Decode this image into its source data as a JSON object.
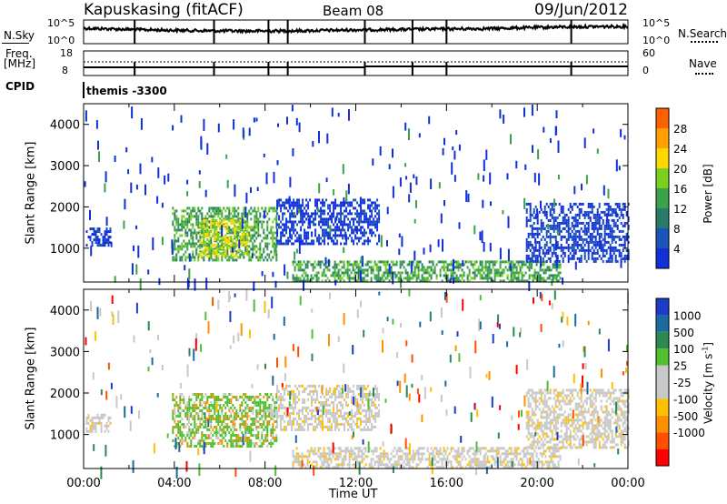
{
  "header": {
    "station": "Kapuskasing (fitACF)",
    "beam": "Beam 08",
    "date": "09/Jun/2012"
  },
  "top_panels": {
    "nsky_label": "N.Sky",
    "nsearch_label": "N.Search",
    "nsky_ticks": [
      "10^5",
      "10^0"
    ],
    "nsearch_ticks": [
      "10^5",
      "10^0"
    ],
    "freq_label_1": "Freq.",
    "freq_label_2": "[MHz]",
    "freq_ticks": [
      "18",
      "8"
    ],
    "nave_label": "Nave",
    "nave_ticks": [
      "60",
      "0"
    ],
    "cpid_label": "CPID",
    "cpid_value": "themis -3300"
  },
  "colors": {
    "power_scale": [
      "#1030d8",
      "#1a54b8",
      "#2a7a6a",
      "#3aa24a",
      "#7ad01e",
      "#ffd800",
      "#ffa000",
      "#ff6000",
      "#ff1800"
    ],
    "velocity_scale": [
      "#ff0000",
      "#ff5000",
      "#ff9000",
      "#ffc000",
      "#c8c8c8",
      "#c8c8c8",
      "#50c030",
      "#2a8a50",
      "#1a6aa0",
      "#1c3cc8"
    ]
  },
  "chart_data": [
    {
      "type": "heatmap",
      "quantity": "Power",
      "ylabel": "Slant Range [km]",
      "yticks": [
        1000,
        2000,
        3000,
        4000
      ],
      "ylim": [
        180,
        4500
      ],
      "xlim": [
        0,
        24
      ],
      "colorbar_label": "Power [dB]",
      "colorbar_ticks": [
        "4",
        "8",
        "12",
        "16",
        "20",
        "24",
        "28"
      ],
      "regions": [
        {
          "t0": 0.1,
          "t1": 1.2,
          "r0": 1100,
          "r1": 1500,
          "level": "low"
        },
        {
          "t0": 3.9,
          "t1": 8.5,
          "r0": 700,
          "r1": 2000,
          "level": "medium"
        },
        {
          "t0": 5.1,
          "t1": 7.2,
          "r0": 800,
          "r1": 1700,
          "level": "high"
        },
        {
          "t0": 8.5,
          "t1": 13.0,
          "r0": 1100,
          "r1": 2200,
          "level": "low"
        },
        {
          "t0": 9.2,
          "t1": 21.0,
          "r0": 200,
          "r1": 700,
          "level": "medium"
        },
        {
          "t0": 19.5,
          "t1": 24.0,
          "r0": 700,
          "r1": 2100,
          "level": "low"
        }
      ]
    },
    {
      "type": "heatmap",
      "quantity": "Velocity",
      "ylabel": "Slant Range [km]",
      "xlabel": "Time UT",
      "yticks": [
        1000,
        2000,
        3000,
        4000
      ],
      "ylim": [
        180,
        4500
      ],
      "xlim": [
        0,
        24
      ],
      "xticks": [
        "00:00",
        "04:00",
        "08:00",
        "12:00",
        "16:00",
        "20:00",
        "00:00"
      ],
      "colorbar_label": "Velocity [m s",
      "colorbar_label_exp": "-1",
      "colorbar_label_end": "]",
      "colorbar_ticks": [
        "1000",
        "500",
        "100",
        "25",
        "-25",
        "-100",
        "-500",
        "-1000"
      ],
      "regions": [
        {
          "t0": 0.1,
          "t1": 1.2,
          "r0": 1100,
          "r1": 1500,
          "level": "grey"
        },
        {
          "t0": 3.9,
          "t1": 8.5,
          "r0": 700,
          "r1": 2000,
          "level": "green"
        },
        {
          "t0": 8.5,
          "t1": 13.0,
          "r0": 1100,
          "r1": 2200,
          "level": "grey"
        },
        {
          "t0": 9.2,
          "t1": 21.0,
          "r0": 200,
          "r1": 700,
          "level": "grey"
        },
        {
          "t0": 19.5,
          "t1": 24.0,
          "r0": 700,
          "r1": 2100,
          "level": "grey"
        }
      ]
    }
  ]
}
